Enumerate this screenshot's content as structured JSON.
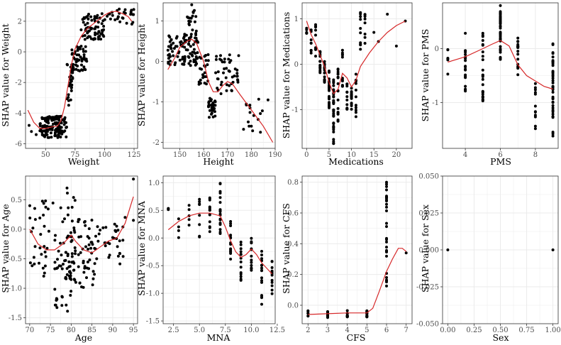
{
  "figure": {
    "background": "#ffffff",
    "panel_border": "#333333",
    "grid_color": "#ebebeb",
    "point_color": "#000000",
    "curve_color": "#d62728"
  },
  "chart_data": [
    {
      "type": "scatter",
      "id": "weight",
      "xlabel": "Weight",
      "ylabel": "SHAP value for Weight",
      "xlim": [
        33,
        128
      ],
      "ylim": [
        -6.3,
        3.2
      ],
      "xticks": [
        50,
        75,
        100,
        125
      ],
      "yticks": [
        -6,
        -4,
        -2,
        0,
        2
      ],
      "xtick_labels": [
        "50",
        "75",
        "100",
        "125"
      ],
      "ytick_labels": [
        "-6",
        "-4",
        "-2",
        "0",
        "2"
      ],
      "smooth": [
        [
          35,
          -3.8
        ],
        [
          40,
          -4.6
        ],
        [
          45,
          -5.0
        ],
        [
          50,
          -5.0
        ],
        [
          55,
          -4.9
        ],
        [
          60,
          -4.85
        ],
        [
          63,
          -4.5
        ],
        [
          66,
          -3.6
        ],
        [
          69,
          -2.2
        ],
        [
          72,
          -0.8
        ],
        [
          75,
          0.2
        ],
        [
          80,
          1.0
        ],
        [
          85,
          1.5
        ],
        [
          90,
          1.8
        ],
        [
          95,
          2.1
        ],
        [
          100,
          2.4
        ],
        [
          105,
          2.6
        ],
        [
          110,
          2.65
        ],
        [
          115,
          2.5
        ],
        [
          120,
          2.3
        ],
        [
          123,
          2.0
        ]
      ],
      "clusters": [
        {
          "x": [
            45,
            68
          ],
          "y": [
            -5.6,
            -4.2
          ],
          "n": 140
        },
        {
          "x": [
            68,
            73
          ],
          "y": [
            -3.5,
            -0.8
          ],
          "n": 25
        },
        {
          "x": [
            72,
            85
          ],
          "y": [
            -1.3,
            0.4
          ],
          "n": 55
        },
        {
          "x": [
            80,
            100
          ],
          "y": [
            0.8,
            2.5
          ],
          "n": 70
        },
        {
          "x": [
            100,
            125
          ],
          "y": [
            1.8,
            2.8
          ],
          "n": 30
        }
      ],
      "extra_points": [
        [
          36,
          -4.8
        ],
        [
          42,
          -5.4
        ],
        [
          38,
          -5.2
        ]
      ]
    },
    {
      "type": "scatter",
      "id": "height",
      "xlabel": "Height",
      "ylabel": "SHAP value for Height",
      "xlim": [
        143,
        190
      ],
      "ylim": [
        -2.15,
        1.45
      ],
      "xticks": [
        150,
        160,
        170,
        180,
        190
      ],
      "yticks": [
        -2,
        -1,
        0,
        1
      ],
      "xtick_labels": [
        "150",
        "160",
        "170",
        "180",
        "190"
      ],
      "ytick_labels": [
        "-2",
        "-1",
        "0",
        "1"
      ],
      "smooth": [
        [
          145,
          -0.2
        ],
        [
          148,
          0.1
        ],
        [
          150,
          0.35
        ],
        [
          153,
          0.5
        ],
        [
          155,
          0.55
        ],
        [
          157,
          0.45
        ],
        [
          160,
          0.0
        ],
        [
          162,
          -0.5
        ],
        [
          164,
          -0.75
        ],
        [
          166,
          -0.75
        ],
        [
          168,
          -0.6
        ],
        [
          170,
          -0.5
        ],
        [
          172,
          -0.55
        ],
        [
          175,
          -0.8
        ],
        [
          180,
          -1.2
        ],
        [
          185,
          -1.6
        ],
        [
          189,
          -2.0
        ]
      ],
      "clusters": [
        {
          "x": [
            145,
            158
          ],
          "y": [
            -0.1,
            0.7
          ],
          "n": 90
        },
        {
          "x": [
            153,
            157
          ],
          "y": [
            0.4,
            1.3
          ],
          "n": 25
        },
        {
          "x": [
            158,
            162
          ],
          "y": [
            -0.6,
            0.2
          ],
          "n": 25
        },
        {
          "x": [
            162,
            165
          ],
          "y": [
            -1.4,
            -0.9
          ],
          "n": 35
        },
        {
          "x": [
            165,
            175
          ],
          "y": [
            -0.8,
            0.2
          ],
          "n": 45
        },
        {
          "x": [
            175,
            185
          ],
          "y": [
            -1.8,
            -0.8
          ],
          "n": 15
        }
      ],
      "extra_points": [
        [
          155,
          1.4
        ],
        [
          180,
          -1.6
        ],
        [
          187,
          -0.95
        ]
      ]
    },
    {
      "type": "scatter",
      "id": "medications",
      "xlabel": "Medications",
      "ylabel": "SHAP value for Medications",
      "xlim": [
        -1,
        23.5
      ],
      "ylim": [
        -1.85,
        1.35
      ],
      "xticks": [
        0,
        5,
        10,
        15,
        20
      ],
      "yticks": [
        -1,
        0,
        1
      ],
      "xtick_labels": [
        "0",
        "5",
        "10",
        "15",
        "20"
      ],
      "ytick_labels": [
        "-1",
        "0",
        "1"
      ],
      "smooth": [
        [
          0,
          0.95
        ],
        [
          1,
          0.65
        ],
        [
          2,
          0.45
        ],
        [
          3,
          0.2
        ],
        [
          4,
          -0.05
        ],
        [
          5,
          -0.4
        ],
        [
          6,
          -0.65
        ],
        [
          7,
          -0.55
        ],
        [
          8,
          -0.2
        ],
        [
          9,
          -0.3
        ],
        [
          10,
          -0.5
        ],
        [
          11,
          -0.35
        ],
        [
          12,
          -0.05
        ],
        [
          14,
          0.25
        ],
        [
          16,
          0.5
        ],
        [
          18,
          0.7
        ],
        [
          20,
          0.85
        ],
        [
          22,
          0.95
        ]
      ],
      "columns": [
        {
          "x": 0,
          "y": [
            0.6,
            0.8
          ],
          "n": 5
        },
        {
          "x": 1,
          "y": [
            0.2,
            0.8
          ],
          "n": 8
        },
        {
          "x": 2,
          "y": [
            0.1,
            0.9
          ],
          "n": 10
        },
        {
          "x": 3,
          "y": [
            -0.2,
            0.3
          ],
          "n": 15
        },
        {
          "x": 4,
          "y": [
            -0.4,
            0.1
          ],
          "n": 18
        },
        {
          "x": 5,
          "y": [
            -1.0,
            -0.1
          ],
          "n": 22
        },
        {
          "x": 6,
          "y": [
            -1.75,
            -0.3
          ],
          "n": 32
        },
        {
          "x": 7,
          "y": [
            -1.3,
            0.0
          ],
          "n": 20
        },
        {
          "x": 8,
          "y": [
            -0.5,
            0.4
          ],
          "n": 12
        },
        {
          "x": 9,
          "y": [
            -1.0,
            -0.4
          ],
          "n": 12
        },
        {
          "x": 10,
          "y": [
            -1.0,
            -0.3
          ],
          "n": 14
        },
        {
          "x": 11,
          "y": [
            -1.2,
            -0.2
          ],
          "n": 12
        },
        {
          "x": 12,
          "y": [
            0.3,
            1.2
          ],
          "n": 10
        },
        {
          "x": 13,
          "y": [
            0.4,
            1.1
          ],
          "n": 8
        }
      ],
      "extra_points": [
        [
          15,
          0.7
        ],
        [
          16,
          0.5
        ],
        [
          18,
          1.1
        ],
        [
          22,
          0.95
        ],
        [
          20,
          0.4
        ]
      ]
    },
    {
      "type": "scatter",
      "id": "pms",
      "xlabel": "PMS",
      "ylabel": "SHAP value for PMS",
      "xlim": [
        2.7,
        9.3
      ],
      "ylim": [
        -1.85,
        0.85
      ],
      "xticks": [
        4,
        6,
        8
      ],
      "yticks": [
        -1,
        0
      ],
      "xtick_labels": [
        "4",
        "6",
        "8"
      ],
      "ytick_labels": [
        "-1",
        "0"
      ],
      "smooth": [
        [
          3,
          -0.25
        ],
        [
          4,
          -0.15
        ],
        [
          5,
          0.0
        ],
        [
          5.5,
          0.08
        ],
        [
          6,
          0.15
        ],
        [
          6.5,
          0.05
        ],
        [
          7,
          -0.3
        ],
        [
          7.5,
          -0.5
        ],
        [
          8,
          -0.6
        ],
        [
          8.5,
          -0.7
        ],
        [
          9,
          -0.75
        ]
      ],
      "columns": [
        {
          "x": 3,
          "y": [
            -0.7,
            0.0
          ],
          "n": 6
        },
        {
          "x": 4,
          "y": [
            -0.9,
            0.35
          ],
          "n": 18
        },
        {
          "x": 5,
          "y": [
            -1.05,
            0.3
          ],
          "n": 25
        },
        {
          "x": 6,
          "y": [
            -0.2,
            0.8
          ],
          "n": 40
        },
        {
          "x": 7,
          "y": [
            -0.5,
            0.2
          ],
          "n": 18
        },
        {
          "x": 8,
          "y": [
            -1.5,
            -0.6
          ],
          "n": 12
        },
        {
          "x": 9,
          "y": [
            -1.75,
            0.1
          ],
          "n": 40
        }
      ],
      "extra_points": []
    },
    {
      "type": "scatter",
      "id": "age",
      "xlabel": "Age",
      "ylabel": "SHAP value for Age",
      "xlim": [
        69,
        96
      ],
      "ylim": [
        -1.6,
        0.9
      ],
      "xticks": [
        70,
        75,
        80,
        85,
        90,
        95
      ],
      "yticks": [
        -1.5,
        -1.0,
        -0.5,
        0.0,
        0.5
      ],
      "xtick_labels": [
        "70",
        "75",
        "80",
        "85",
        "90",
        "95"
      ],
      "ytick_labels": [
        "-1.5",
        "-1.0",
        "-0.5",
        "0.0",
        "0.5"
      ],
      "smooth": [
        [
          70,
          0.0
        ],
        [
          72,
          -0.25
        ],
        [
          74,
          -0.35
        ],
        [
          76,
          -0.35
        ],
        [
          78,
          -0.25
        ],
        [
          80,
          -0.1
        ],
        [
          81,
          -0.2
        ],
        [
          83,
          -0.35
        ],
        [
          85,
          -0.4
        ],
        [
          87,
          -0.3
        ],
        [
          89,
          -0.2
        ],
        [
          91,
          -0.15
        ],
        [
          93,
          0.1
        ],
        [
          95,
          0.55
        ]
      ],
      "clusters": [
        {
          "x": [
            70,
            80
          ],
          "y": [
            -0.8,
            0.5
          ],
          "n": 50
        },
        {
          "x": [
            76,
            80
          ],
          "y": [
            -1.45,
            -0.5
          ],
          "n": 30
        },
        {
          "x": [
            79,
            81
          ],
          "y": [
            -0.9,
            0.85
          ],
          "n": 25
        },
        {
          "x": [
            80,
            86
          ],
          "y": [
            -1.0,
            0.2
          ],
          "n": 55
        },
        {
          "x": [
            84,
            93
          ],
          "y": [
            -0.6,
            0.1
          ],
          "n": 35
        }
      ],
      "extra_points": [
        [
          95,
          0.85
        ],
        [
          95,
          0.15
        ],
        [
          93,
          0.2
        ]
      ]
    },
    {
      "type": "scatter",
      "id": "mna",
      "xlabel": "MNA",
      "ylabel": "SHAP value for MNA",
      "xlim": [
        1.5,
        12.3
      ],
      "ylim": [
        -1.55,
        1.12
      ],
      "xticks": [
        2.5,
        5.0,
        7.5,
        10.0,
        12.5
      ],
      "yticks": [
        -1.5,
        -1.0,
        -0.5,
        0.0,
        0.5,
        1.0
      ],
      "xtick_labels": [
        "2.5",
        "5.0",
        "7.5",
        "10.0",
        "12.5"
      ],
      "ytick_labels": [
        "-1.5",
        "-1.0",
        "-0.5",
        "0.0",
        "0.5",
        "1.0"
      ],
      "smooth": [
        [
          2,
          0.15
        ],
        [
          3,
          0.3
        ],
        [
          4,
          0.4
        ],
        [
          5,
          0.45
        ],
        [
          6,
          0.45
        ],
        [
          7,
          0.4
        ],
        [
          7.5,
          0.2
        ],
        [
          8,
          -0.05
        ],
        [
          8.5,
          -0.25
        ],
        [
          9,
          -0.35
        ],
        [
          9.5,
          -0.3
        ],
        [
          10,
          -0.2
        ],
        [
          10.5,
          -0.3
        ],
        [
          11,
          -0.45
        ],
        [
          11.5,
          -0.55
        ],
        [
          12,
          -0.65
        ]
      ],
      "columns": [
        {
          "x": 2,
          "y": [
            0.35,
            0.55
          ],
          "n": 3
        },
        {
          "x": 3,
          "y": [
            0.0,
            0.4
          ],
          "n": 4
        },
        {
          "x": 4,
          "y": [
            0.2,
            0.6
          ],
          "n": 5
        },
        {
          "x": 5,
          "y": [
            0.0,
            0.8
          ],
          "n": 8
        },
        {
          "x": 6,
          "y": [
            0.1,
            0.95
          ],
          "n": 14
        },
        {
          "x": 7,
          "y": [
            0.0,
            1.0
          ],
          "n": 18
        },
        {
          "x": 8,
          "y": [
            -0.4,
            0.3
          ],
          "n": 14
        },
        {
          "x": 9,
          "y": [
            -0.8,
            0.0
          ],
          "n": 14
        },
        {
          "x": 10,
          "y": [
            -0.6,
            0.0
          ],
          "n": 14
        },
        {
          "x": 11,
          "y": [
            -1.2,
            -0.2
          ],
          "n": 16
        },
        {
          "x": 12,
          "y": [
            -1.4,
            -0.3
          ],
          "n": 12
        }
      ],
      "extra_points": []
    },
    {
      "type": "scatter",
      "id": "cfs",
      "xlabel": "CFS",
      "ylabel": "SHAP value for CFS",
      "xlim": [
        1.7,
        7.3
      ],
      "ylim": [
        -0.12,
        0.84
      ],
      "xticks": [
        2,
        3,
        4,
        5,
        6,
        7
      ],
      "yticks": [
        0.0,
        0.2,
        0.4,
        0.6,
        0.8
      ],
      "xtick_labels": [
        "2",
        "3",
        "4",
        "5",
        "6",
        "7"
      ],
      "ytick_labels": [
        "0.0",
        "0.2",
        "0.4",
        "0.6",
        "0.8"
      ],
      "smooth": [
        [
          2,
          -0.06
        ],
        [
          3,
          -0.055
        ],
        [
          4,
          -0.05
        ],
        [
          5,
          -0.05
        ],
        [
          5.3,
          -0.02
        ],
        [
          5.6,
          0.08
        ],
        [
          6,
          0.22
        ],
        [
          6.3,
          0.3
        ],
        [
          6.6,
          0.37
        ],
        [
          6.8,
          0.37
        ],
        [
          7,
          0.35
        ]
      ],
      "columns": [
        {
          "x": 2,
          "y": [
            -0.08,
            -0.03
          ],
          "n": 6
        },
        {
          "x": 3,
          "y": [
            -0.08,
            -0.03
          ],
          "n": 12
        },
        {
          "x": 4,
          "y": [
            -0.08,
            -0.03
          ],
          "n": 12
        },
        {
          "x": 5,
          "y": [
            -0.08,
            -0.03
          ],
          "n": 14
        },
        {
          "x": 6,
          "y": [
            0.1,
            0.8
          ],
          "n": 26
        }
      ],
      "extra_points": [
        [
          7,
          0.34
        ],
        [
          6,
          0.8
        ],
        [
          6,
          0.75
        ]
      ]
    },
    {
      "type": "scatter",
      "id": "sex",
      "xlabel": "Sex",
      "ylabel": "SHAP value for Sex",
      "xlim": [
        -0.05,
        1.05
      ],
      "ylim": [
        -0.05,
        0.05
      ],
      "xticks": [
        0.0,
        0.25,
        0.5,
        0.75,
        1.0
      ],
      "yticks": [
        -0.05,
        -0.025,
        0.0,
        0.025,
        0.05
      ],
      "xtick_labels": [
        "0.00",
        "0.25",
        "0.50",
        "0.75",
        "1.00"
      ],
      "ytick_labels": [
        "-0.050",
        "-0.025",
        "0.000",
        "0.025",
        "0.050"
      ],
      "smooth": [],
      "columns": [],
      "extra_points": [
        [
          0,
          0
        ],
        [
          1,
          0
        ]
      ]
    }
  ]
}
